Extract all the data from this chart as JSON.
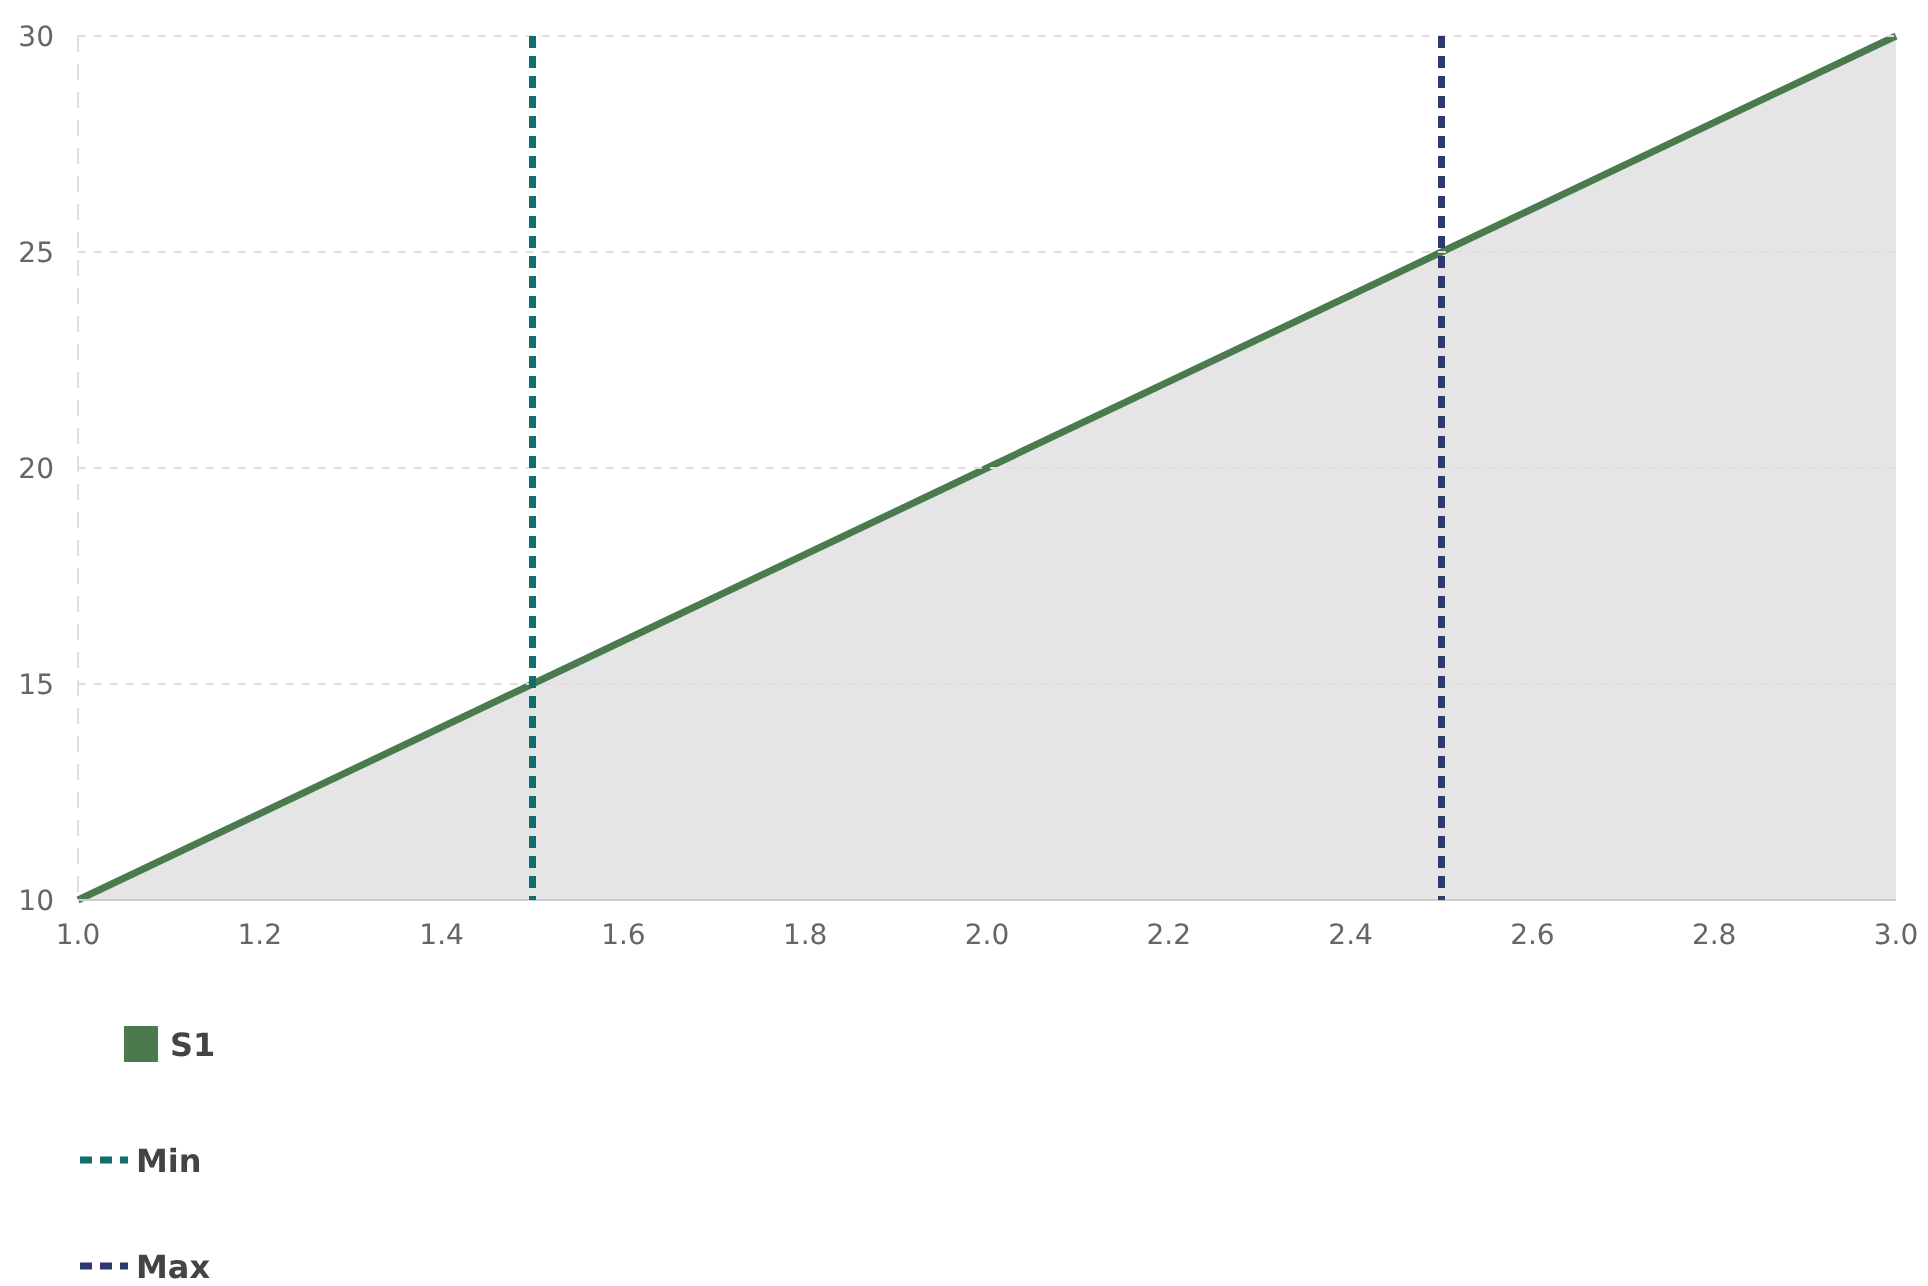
{
  "chart_data": {
    "type": "area",
    "x": [
      1.0,
      1.5,
      2.0,
      2.5,
      3.0
    ],
    "series": [
      {
        "name": "S1",
        "color": "#4a7a4e",
        "values": [
          10,
          15,
          20,
          25,
          30
        ]
      }
    ],
    "xlim": [
      1.0,
      3.0
    ],
    "xticks": [
      {
        "value": 1.0,
        "label": "1.0"
      },
      {
        "value": 1.2,
        "label": "1.2"
      },
      {
        "value": 1.4,
        "label": "1.4"
      },
      {
        "value": 1.6,
        "label": "1.6"
      },
      {
        "value": 1.8,
        "label": "1.8"
      },
      {
        "value": 2.0,
        "label": "2.0"
      },
      {
        "value": 2.2,
        "label": "2.2"
      },
      {
        "value": 2.4,
        "label": "2.4"
      },
      {
        "value": 2.6,
        "label": "2.6"
      },
      {
        "value": 2.8,
        "label": "2.8"
      },
      {
        "value": 3.0,
        "label": "3.0"
      }
    ],
    "ylim": [
      10,
      30
    ],
    "yticks": [
      10,
      15,
      20,
      25,
      30
    ],
    "grid": "y",
    "ref_lines": [
      {
        "axis": "x",
        "value": 1.5,
        "label": "Min",
        "color": "#0f6e6e",
        "line_style": "dashed"
      },
      {
        "axis": "x",
        "value": 2.5,
        "label": "Max",
        "color": "#2b3a70",
        "line_style": "dashed"
      }
    ],
    "legend": "bottom"
  }
}
